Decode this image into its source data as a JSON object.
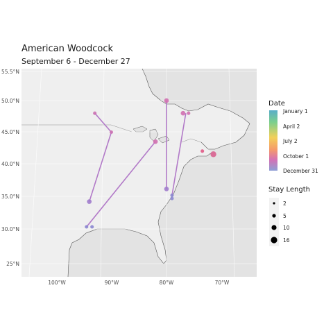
{
  "title": "American Woodcock",
  "subtitle": "September 6 - December 27",
  "axes": {
    "lat_ticks": [
      "25.5°N",
      "55.5°N",
      "50.0°N",
      "45.0°N",
      "40.0°N",
      "35.0°N",
      "30.0°N",
      "25°N"
    ],
    "lon_ticks": [
      "100°W",
      "90°W",
      "80°W",
      "70°W"
    ]
  },
  "legend": {
    "date_title": "Date",
    "date_labels": [
      "January 1",
      "April 2",
      "July 2",
      "October 1",
      "December 31"
    ],
    "date_gradient": [
      "#5aaec9",
      "#7ccf8c",
      "#f2d05a",
      "#f59a6b",
      "#d471b5",
      "#8ea0d6"
    ],
    "stay_title": "Stay Length",
    "stay_labels": [
      "2",
      "5",
      "10",
      "16"
    ]
  },
  "colors": {
    "ocean": "#e3e3e3",
    "land": "#efefef",
    "route": "#b27ac8"
  },
  "chart_data": {
    "type": "map",
    "title": "American Woodcock",
    "subtitle": "September 6 - December 27",
    "xlim": [
      -107,
      -64
    ],
    "ylim": [
      23,
      55.5
    ],
    "routes": [
      {
        "points": [
          [
            -93.0,
            48.0
          ],
          [
            -90.0,
            45.0
          ],
          [
            -94.0,
            34.0
          ]
        ]
      },
      {
        "points": [
          [
            -82.0,
            43.5
          ],
          [
            -94.5,
            30.0
          ]
        ]
      },
      {
        "points": [
          [
            -80.0,
            50.0
          ],
          [
            -80.0,
            36.0
          ]
        ]
      },
      {
        "points": [
          [
            -76.5,
            48.0
          ],
          [
            -79.0,
            35.0
          ]
        ]
      }
    ],
    "stops": [
      {
        "lon": -93.0,
        "lat": 48.0,
        "stay": 2,
        "color": "#cc72b2"
      },
      {
        "lon": -90.0,
        "lat": 45.0,
        "stay": 2,
        "color": "#cc72b2"
      },
      {
        "lon": -94.0,
        "lat": 34.0,
        "stay": 5,
        "color": "#a07ccc"
      },
      {
        "lon": -82.0,
        "lat": 43.5,
        "stay": 5,
        "color": "#d070b0"
      },
      {
        "lon": -94.5,
        "lat": 30.0,
        "stay": 2,
        "color": "#8a86d0"
      },
      {
        "lon": -93.5,
        "lat": 30.0,
        "stay": 2,
        "color": "#8a86d0"
      },
      {
        "lon": -80.0,
        "lat": 50.0,
        "stay": 5,
        "color": "#d070b0"
      },
      {
        "lon": -80.0,
        "lat": 36.0,
        "stay": 5,
        "color": "#a07ccc"
      },
      {
        "lon": -77.0,
        "lat": 48.0,
        "stay": 5,
        "color": "#d070b0"
      },
      {
        "lon": -76.0,
        "lat": 48.0,
        "stay": 2,
        "color": "#d070b0"
      },
      {
        "lon": -79.0,
        "lat": 35.0,
        "stay": 2,
        "color": "#8a86d0"
      },
      {
        "lon": -79.0,
        "lat": 34.5,
        "stay": 2,
        "color": "#8a86d0"
      },
      {
        "lon": -71.5,
        "lat": 41.5,
        "stay": 10,
        "color": "#d8608f"
      },
      {
        "lon": -73.5,
        "lat": 42.0,
        "stay": 2,
        "color": "#e05a86"
      }
    ]
  }
}
